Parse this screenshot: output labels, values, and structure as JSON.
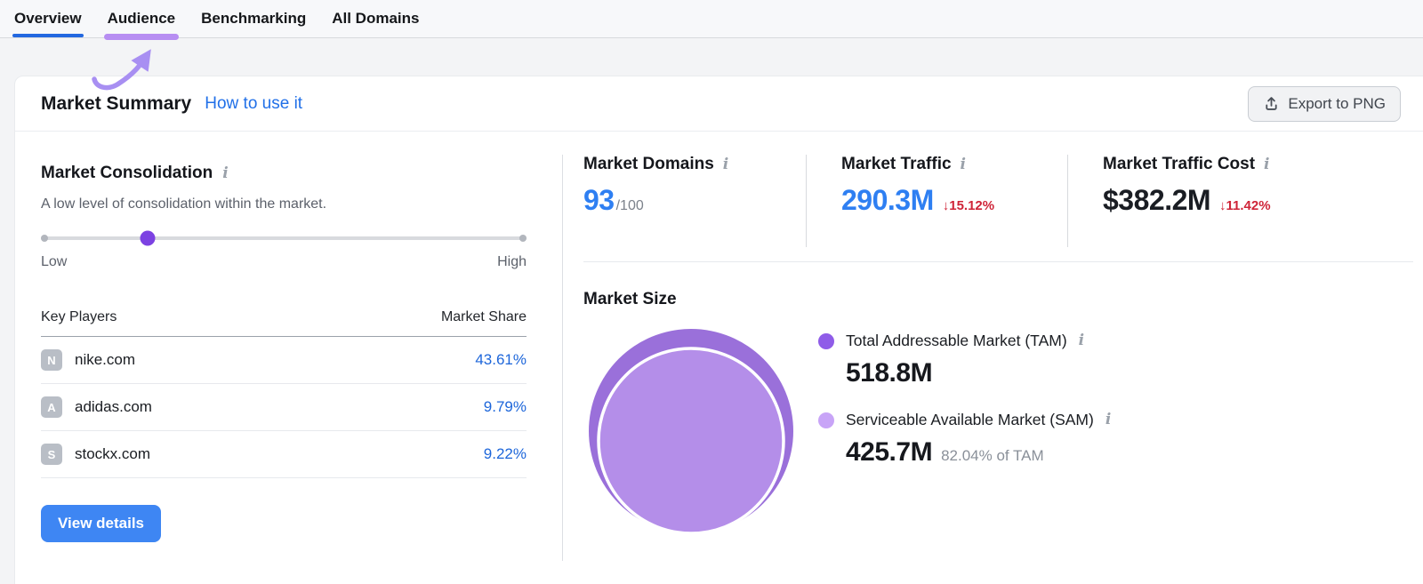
{
  "nav": {
    "tabs": [
      {
        "label": "Overview",
        "state": "active"
      },
      {
        "label": "Audience",
        "state": "highlighted"
      },
      {
        "label": "Benchmarking",
        "state": "default"
      },
      {
        "label": "All Domains",
        "state": "default"
      }
    ]
  },
  "header": {
    "title": "Market Summary",
    "help_link": "How to use it",
    "export_label": "Export to PNG"
  },
  "icons": {
    "info": "i"
  },
  "consolidation": {
    "title": "Market Consolidation",
    "description": "A low level of consolidation within the market.",
    "slider": {
      "value_pct": 22,
      "low_label": "Low",
      "high_label": "High"
    }
  },
  "key_players": {
    "header_domain": "Key Players",
    "header_share": "Market Share",
    "rows": [
      {
        "initial": "N",
        "domain": "nike.com",
        "share": "43.61%"
      },
      {
        "initial": "A",
        "domain": "adidas.com",
        "share": "9.79%"
      },
      {
        "initial": "S",
        "domain": "stockx.com",
        "share": "9.22%"
      }
    ]
  },
  "view_details_label": "View details",
  "stats": [
    {
      "label": "Market Domains",
      "value": "93",
      "suffix": "/100"
    },
    {
      "label": "Market Traffic",
      "value": "290.3M",
      "trend": "↓15.12%"
    },
    {
      "label": "Market Traffic Cost",
      "value": "$382.2M",
      "trend": "↓11.42%"
    }
  ],
  "market_size": {
    "title": "Market Size"
  },
  "chart_data": {
    "type": "bubble",
    "title": "Market Size",
    "series": [
      {
        "name": "Total Addressable Market (TAM)",
        "value_millions": 518.8,
        "display_value": "518.8M",
        "color": "#8f5ce8",
        "bubble_fill": "#9a70da"
      },
      {
        "name": "Serviceable Available Market (SAM)",
        "value_millions": 425.7,
        "display_value": "425.7M",
        "note": "82.04% of TAM",
        "color": "#c8a4f7",
        "bubble_fill": "#b48ee9"
      }
    ]
  },
  "colors": {
    "accent_blue": "#2e7ff2",
    "link_blue": "#2170e8",
    "negative_red": "#cf2438",
    "active_tab_blue": "#2368e0",
    "highlight_purple": "#b78ef2",
    "annotation_purple": "#a88ff2",
    "button_blue": "#3e86f3"
  }
}
